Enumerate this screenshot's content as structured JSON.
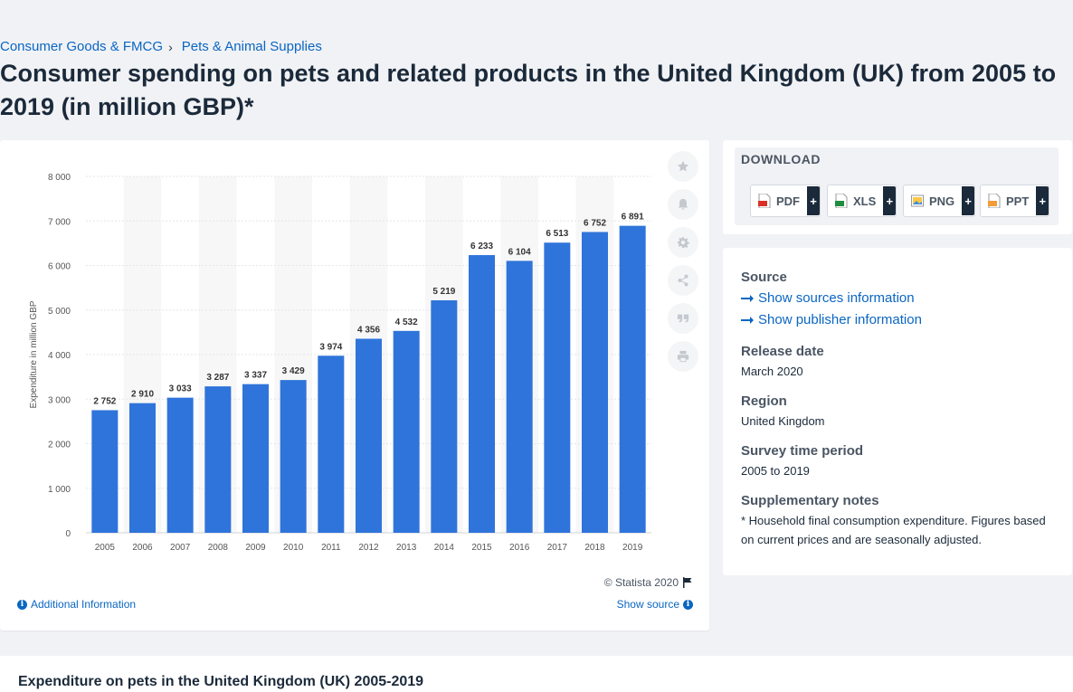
{
  "breadcrumb": {
    "item1": "Consumer Goods & FMCG",
    "item2": "Pets & Animal Supplies"
  },
  "title": "Consumer spending on pets and related products in the United Kingdom (UK) from 2005 to 2019 (in million GBP)*",
  "chart_data": {
    "type": "bar",
    "categories": [
      "2005",
      "2006",
      "2007",
      "2008",
      "2009",
      "2010",
      "2011",
      "2012",
      "2013",
      "2014",
      "2015",
      "2016",
      "2017",
      "2018",
      "2019"
    ],
    "values": [
      2752,
      2910,
      3033,
      3287,
      3337,
      3429,
      3974,
      4356,
      4532,
      5219,
      6233,
      6104,
      6513,
      6752,
      6891
    ],
    "value_labels": [
      "2 752",
      "2 910",
      "3 033",
      "3 287",
      "3 337",
      "3 429",
      "3 974",
      "4 356",
      "4 532",
      "5 219",
      "6 233",
      "6 104",
      "6 513",
      "6 752",
      "6 891"
    ],
    "ylabel": "Expenditure in million GBP",
    "yticks": [
      0,
      1000,
      2000,
      3000,
      4000,
      5000,
      6000,
      7000,
      8000
    ],
    "ytick_labels": [
      "0",
      "1 000",
      "2 000",
      "3 000",
      "4 000",
      "5 000",
      "6 000",
      "7 000",
      "8 000"
    ],
    "ylim": [
      0,
      8000
    ],
    "grid": true,
    "bar_color": "#2f74da"
  },
  "chart_footer": {
    "copyright": "© Statista 2020",
    "additional_info": "Additional Information",
    "show_source": "Show source"
  },
  "download": {
    "title": "DOWNLOAD",
    "buttons": [
      {
        "label": "PDF",
        "plus": "+"
      },
      {
        "label": "XLS",
        "plus": "+"
      },
      {
        "label": "PNG",
        "plus": "+"
      },
      {
        "label": "PPT",
        "plus": "+"
      }
    ]
  },
  "info": {
    "source_heading": "Source",
    "show_sources": "Show sources information",
    "show_publisher": "Show publisher information",
    "release_heading": "Release date",
    "release_value": "March 2020",
    "region_heading": "Region",
    "region_value": "United Kingdom",
    "survey_heading": "Survey time period",
    "survey_value": "2005 to 2019",
    "notes_heading": "Supplementary notes",
    "notes_value": "* Household final consumption expenditure. Figures based on current prices and are seasonally adjusted."
  },
  "bottom": {
    "title": "Expenditure on pets in the United Kingdom (UK) 2005-2019"
  }
}
